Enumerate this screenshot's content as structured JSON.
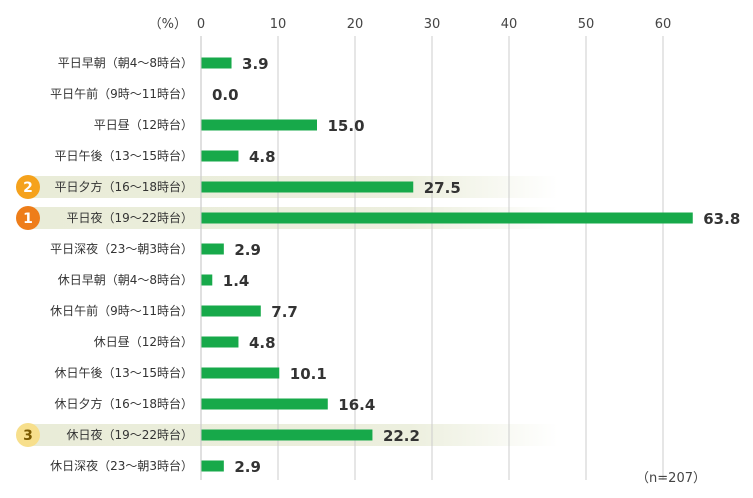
{
  "chart_data": {
    "type": "bar",
    "orientation": "horizontal",
    "unit_label": "（%）",
    "note": "（n=207）",
    "xlim": [
      0,
      70
    ],
    "ticks": [
      0,
      10,
      20,
      30,
      40,
      50,
      60
    ],
    "grid": true,
    "categories": [
      "平日早朝（朝4～8時台）",
      "平日午前（9時～11時台）",
      "平日昼（12時台）",
      "平日午後（13～15時台）",
      "平日夕方（16～18時台）",
      "平日夜（19～22時台）",
      "平日深夜（23～朝3時台）",
      "休日早朝（朝4～8時台）",
      "休日午前（9時～11時台）",
      "休日昼（12時台）",
      "休日午後（13～15時台）",
      "休日夕方（16～18時台）",
      "休日夜（19～22時台）",
      "休日深夜（23～朝3時台）"
    ],
    "values": [
      3.9,
      0.0,
      15.0,
      4.8,
      27.5,
      63.8,
      2.9,
      1.4,
      7.7,
      4.8,
      10.1,
      16.4,
      22.2,
      2.9
    ],
    "value_labels": [
      "3.9",
      "0.0",
      "15.0",
      "4.8",
      "27.5",
      "63.8",
      "2.9",
      "1.4",
      "7.7",
      "4.8",
      "10.1",
      "16.4",
      "22.2",
      "2.9"
    ],
    "ranks": [
      {
        "category_index": 5,
        "rank": "1",
        "color": "#ee7d1a",
        "text_color": "#ffffff"
      },
      {
        "category_index": 4,
        "rank": "2",
        "color": "#f5a21c",
        "text_color": "#ffffff"
      },
      {
        "category_index": 12,
        "rank": "3",
        "color": "#f7df8c",
        "text_color": "#7a5a00"
      }
    ]
  },
  "colors": {
    "bar": "#17a94a",
    "grid": "#cccccc",
    "highlight": "#e9ecd8"
  }
}
